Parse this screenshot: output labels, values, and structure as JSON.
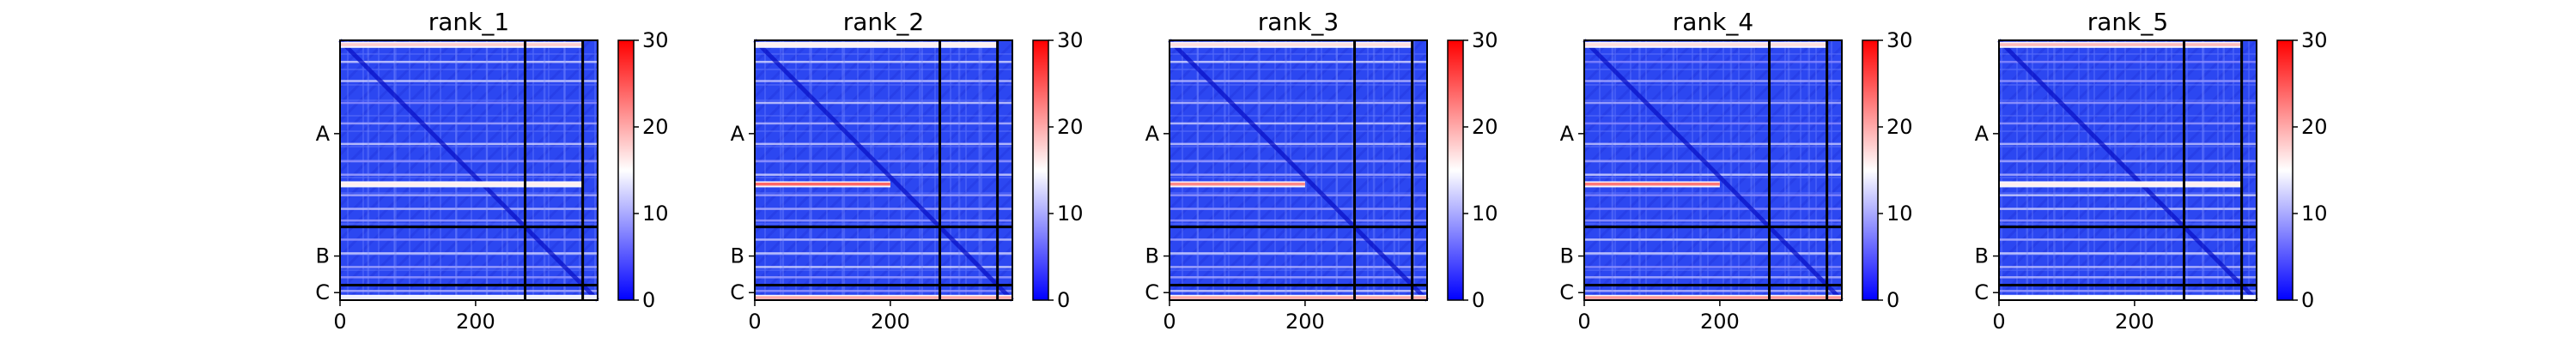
{
  "chart_data": [
    {
      "type": "heatmap",
      "title": "rank_1",
      "xlabel": "",
      "ylabel": "",
      "xlim": [
        0,
        380
      ],
      "x_ticks": [
        0,
        200
      ],
      "y_tick_labels": [
        "A",
        "B",
        "C"
      ],
      "colorbar": {
        "min": 0,
        "max": 30,
        "ticks": [
          0,
          10,
          20,
          30
        ],
        "colormap": "bwr"
      },
      "segment_boundaries": [
        273,
        358
      ],
      "high_value_bands": [
        {
          "row": 6,
          "from": 0,
          "to": 358,
          "value": 18
        },
        {
          "row": 210,
          "from": 0,
          "to": 358,
          "value": 16
        },
        {
          "row": 376,
          "from": 0,
          "to": 380,
          "value": 14
        }
      ]
    },
    {
      "type": "heatmap",
      "title": "rank_2",
      "xlabel": "",
      "ylabel": "",
      "xlim": [
        0,
        380
      ],
      "x_ticks": [
        0,
        200
      ],
      "y_tick_labels": [
        "A",
        "B",
        "C"
      ],
      "colorbar": {
        "min": 0,
        "max": 30,
        "ticks": [
          0,
          10,
          20,
          30
        ],
        "colormap": "bwr"
      },
      "segment_boundaries": [
        273,
        358
      ],
      "high_value_bands": [
        {
          "row": 6,
          "from": 0,
          "to": 358,
          "value": 16
        },
        {
          "row": 210,
          "from": 0,
          "to": 200,
          "value": 24
        },
        {
          "row": 376,
          "from": 0,
          "to": 380,
          "value": 20
        }
      ]
    },
    {
      "type": "heatmap",
      "title": "rank_3",
      "xlabel": "",
      "ylabel": "",
      "xlim": [
        0,
        380
      ],
      "x_ticks": [
        0,
        200
      ],
      "y_tick_labels": [
        "A",
        "B",
        "C"
      ],
      "colorbar": {
        "min": 0,
        "max": 30,
        "ticks": [
          0,
          10,
          20,
          30
        ],
        "colormap": "bwr"
      },
      "segment_boundaries": [
        273,
        358
      ],
      "high_value_bands": [
        {
          "row": 6,
          "from": 0,
          "to": 358,
          "value": 17
        },
        {
          "row": 210,
          "from": 0,
          "to": 200,
          "value": 22
        },
        {
          "row": 376,
          "from": 0,
          "to": 380,
          "value": 20
        }
      ]
    },
    {
      "type": "heatmap",
      "title": "rank_4",
      "xlabel": "",
      "ylabel": "",
      "xlim": [
        0,
        380
      ],
      "x_ticks": [
        0,
        200
      ],
      "y_tick_labels": [
        "A",
        "B",
        "C"
      ],
      "colorbar": {
        "min": 0,
        "max": 30,
        "ticks": [
          0,
          10,
          20,
          30
        ],
        "colormap": "bwr"
      },
      "segment_boundaries": [
        273,
        358
      ],
      "high_value_bands": [
        {
          "row": 6,
          "from": 0,
          "to": 358,
          "value": 17
        },
        {
          "row": 210,
          "from": 0,
          "to": 200,
          "value": 23
        },
        {
          "row": 376,
          "from": 0,
          "to": 380,
          "value": 21
        }
      ]
    },
    {
      "type": "heatmap",
      "title": "rank_5",
      "xlabel": "",
      "ylabel": "",
      "xlim": [
        0,
        380
      ],
      "x_ticks": [
        0,
        200
      ],
      "y_tick_labels": [
        "A",
        "B",
        "C"
      ],
      "colorbar": {
        "min": 0,
        "max": 30,
        "ticks": [
          0,
          10,
          20,
          30
        ],
        "colormap": "bwr"
      },
      "segment_boundaries": [
        273,
        358
      ],
      "high_value_bands": [
        {
          "row": 6,
          "from": 0,
          "to": 358,
          "value": 19
        },
        {
          "row": 210,
          "from": 0,
          "to": 358,
          "value": 16
        },
        {
          "row": 376,
          "from": 0,
          "to": 380,
          "value": 15
        }
      ]
    }
  ]
}
